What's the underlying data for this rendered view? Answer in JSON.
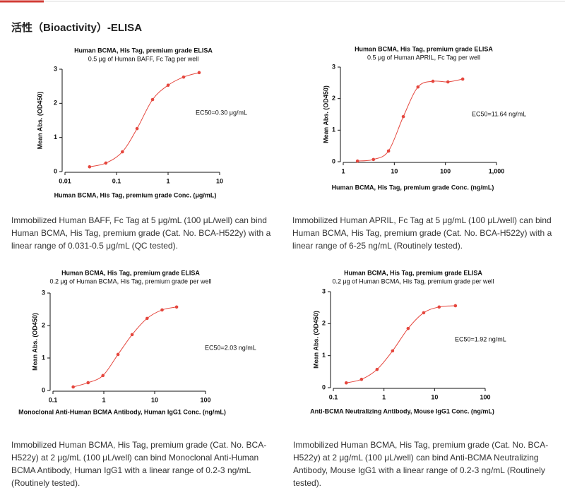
{
  "header": {
    "title": "活性（Bioactivity）-ELISA"
  },
  "chart_data": [
    {
      "type": "scatter",
      "title": "Human BCMA, His Tag, premium grade ELISA",
      "subtitle": "0.5 μg of Human BAFF, Fc Tag per well",
      "xlabel": "Human BCMA, His Tag, premium grade Conc. (μg/mL)",
      "ylabel": "Mean Abs. (OD450)",
      "annotation": "EC50=0.30 μg/mL",
      "xscale": "log",
      "fit_line": true,
      "color": "#e5463d",
      "x": [
        0.03,
        0.062,
        0.13,
        0.25,
        0.5,
        1,
        2,
        4
      ],
      "values": [
        0.14,
        0.25,
        0.58,
        1.26,
        2.11,
        2.53,
        2.77,
        2.9
      ],
      "xlim": [
        0.01,
        10
      ],
      "xticks": [
        0.01,
        0.1,
        1,
        10
      ],
      "ylim": [
        0,
        3
      ],
      "yticks": [
        0,
        1,
        2,
        3
      ]
    },
    {
      "type": "scatter",
      "title": "Human BCMA, His Tag, premium grade ELISA",
      "subtitle": "0.5 μg of Human APRIL, Fc Tag per well",
      "xlabel": "Human BCMA, His Tag, premium grade Conc. (ng/mL)",
      "ylabel": "Mean Abs. (OD450)",
      "annotation": "EC50=11.64 ng/mL",
      "xscale": "log",
      "fit_line": true,
      "color": "#e5463d",
      "x": [
        1.9,
        3.9,
        7.7,
        15,
        29,
        57,
        112,
        218
      ],
      "values": [
        0.02,
        0.07,
        0.34,
        1.43,
        2.37,
        2.55,
        2.53,
        2.62
      ],
      "xlim": [
        1,
        1000
      ],
      "xticks": [
        1,
        10,
        100,
        {
          "value": 1000,
          "label": "1,000"
        }
      ],
      "ylim": [
        0,
        3
      ],
      "yticks": [
        0,
        1,
        2,
        3
      ]
    },
    {
      "type": "scatter",
      "title": "Human BCMA, His Tag, premium grade ELISA",
      "subtitle": "0.2 μg of Human BCMA, His Tag, premium grade per well",
      "xlabel": "Monoclonal Anti-Human BCMA Antibody, Human IgG1 Conc. (ng/mL)",
      "ylabel": "Mean Abs. (OD450)",
      "annotation": "EC50=2.03 ng/mL",
      "xscale": "log",
      "fit_line": true,
      "color": "#e5463d",
      "x": [
        0.25,
        0.49,
        0.96,
        1.9,
        3.6,
        7.1,
        14,
        27
      ],
      "values": [
        0.11,
        0.24,
        0.46,
        1.11,
        1.72,
        2.22,
        2.48,
        2.57
      ],
      "xlim": [
        0.1,
        100
      ],
      "xticks": [
        0.1,
        1,
        10,
        100
      ],
      "ylim": [
        0,
        3
      ],
      "yticks": [
        0,
        1,
        2,
        3
      ]
    },
    {
      "type": "scatter",
      "title": "Human BCMA, His Tag, premium grade ELISA",
      "subtitle": "0.2 μg of Human BCMA, His Tag, premium grade per well",
      "xlabel": "Anti-BCMA Neutralizing Antibody, Mouse IgG1 Conc. (ng/mL)",
      "ylabel": "Mean Abs. (OD450)",
      "annotation": "EC50=1.92 ng/mL",
      "xscale": "log",
      "fit_line": true,
      "color": "#e5463d",
      "x": [
        0.18,
        0.36,
        0.73,
        1.48,
        3.0,
        6.1,
        12.3,
        25.8
      ],
      "values": [
        0.15,
        0.26,
        0.57,
        1.15,
        1.85,
        2.34,
        2.52,
        2.56
      ],
      "xlim": [
        0.1,
        100
      ],
      "xticks": [
        0.1,
        1,
        10,
        100
      ],
      "ylim": [
        0,
        3
      ],
      "yticks": [
        0,
        1,
        2,
        3
      ]
    }
  ],
  "captions": [
    "Immobilized Human BAFF, Fc Tag at 5 μg/mL (100 μL/well) can bind Human BCMA, His Tag, premium grade (Cat. No. BCA-H522y) with a linear range of 0.031-0.5 μg/mL (QC tested).",
    "Immobilized Human APRIL, Fc Tag at 5 μg/mL (100 μL/well) can bind Human BCMA, His Tag, premium grade (Cat. No. BCA-H522y) with a linear range of 6-25 ng/mL (Routinely tested).",
    "Immobilized Human BCMA, His Tag, premium grade (Cat. No. BCA-H522y) at 2 μg/mL (100 μL/well) can bind Monoclonal Anti-Human BCMA Antibody, Human IgG1 with a linear range of 0.2-3 ng/mL (Routinely tested).",
    "Immobilized Human BCMA, His Tag, premium grade (Cat. No. BCA-H522y) at 2 μg/mL (100 μL/well) can bind Anti-BCMA Neutralizing Antibody, Mouse IgG1 with a linear range of 0.2-3 ng/mL (Routinely tested)."
  ]
}
